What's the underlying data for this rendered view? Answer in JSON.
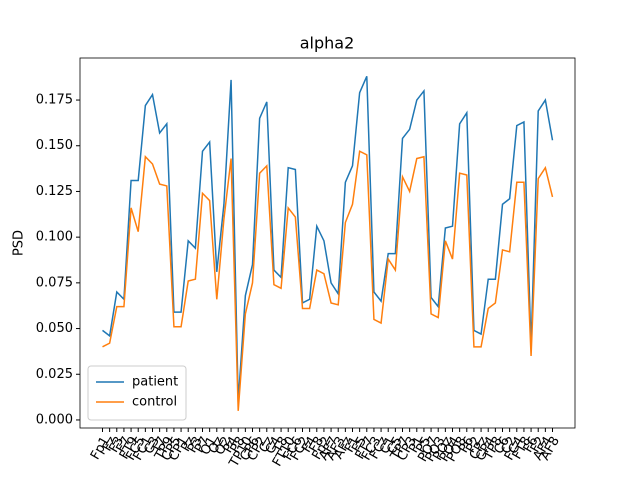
{
  "chart_data": {
    "type": "line",
    "title": "alpha2",
    "y_label": "PSD",
    "categories": [
      "Fp1",
      "Fz",
      "F3",
      "F7",
      "FT9",
      "FC5",
      "FC1",
      "C3",
      "T7",
      "TP9",
      "CP5",
      "CP1",
      "Pz",
      "P3",
      "P7",
      "O1",
      "Oz",
      "O2",
      "P4",
      "P8",
      "TP10",
      "CP6",
      "CP2",
      "Cz",
      "C4",
      "T8",
      "FT10",
      "FC6",
      "FC2",
      "F4",
      "F8",
      "Fp2",
      "AF7",
      "AF3",
      "AFz",
      "F1",
      "F5",
      "FT7",
      "FC3",
      "FCz",
      "C1",
      "C5",
      "TP7",
      "CP3",
      "P1",
      "P5",
      "PO7",
      "PO3",
      "POz",
      "PO4",
      "PO8",
      "P6",
      "P2",
      "CPz",
      "CP4",
      "TP8",
      "C6",
      "C2",
      "FC4",
      "FT8",
      "F6",
      "F2",
      "AF4",
      "AF8"
    ],
    "series": [
      {
        "name": "patient",
        "color": "#1f77b4",
        "values": [
          0.049,
          0.046,
          0.07,
          0.066,
          0.131,
          0.131,
          0.172,
          0.178,
          0.157,
          0.162,
          0.059,
          0.059,
          0.098,
          0.094,
          0.147,
          0.152,
          0.081,
          0.118,
          0.186,
          0.01,
          0.068,
          0.085,
          0.165,
          0.174,
          0.082,
          0.078,
          0.138,
          0.137,
          0.064,
          0.066,
          0.106,
          0.098,
          0.075,
          0.069,
          0.13,
          0.139,
          0.179,
          0.188,
          0.07,
          0.065,
          0.091,
          0.091,
          0.154,
          0.159,
          0.175,
          0.18,
          0.067,
          0.062,
          0.105,
          0.106,
          0.162,
          0.168,
          0.049,
          0.047,
          0.077,
          0.077,
          0.118,
          0.121,
          0.161,
          0.163,
          0.04,
          0.169,
          0.175,
          0.153
        ]
      },
      {
        "name": "control",
        "color": "#ff7f0e",
        "values": [
          0.04,
          0.042,
          0.062,
          0.062,
          0.116,
          0.103,
          0.144,
          0.14,
          0.129,
          0.128,
          0.051,
          0.051,
          0.076,
          0.077,
          0.124,
          0.12,
          0.066,
          0.11,
          0.143,
          0.005,
          0.058,
          0.075,
          0.135,
          0.139,
          0.074,
          0.072,
          0.116,
          0.111,
          0.061,
          0.061,
          0.082,
          0.08,
          0.064,
          0.063,
          0.108,
          0.118,
          0.147,
          0.145,
          0.055,
          0.053,
          0.088,
          0.082,
          0.133,
          0.125,
          0.143,
          0.144,
          0.058,
          0.056,
          0.098,
          0.088,
          0.135,
          0.134,
          0.04,
          0.04,
          0.061,
          0.064,
          0.093,
          0.092,
          0.13,
          0.13,
          0.035,
          0.132,
          0.138,
          0.122
        ]
      }
    ],
    "ylim": [
      -0.0044,
      0.198
    ],
    "yticks": [
      {
        "value": 0,
        "label": "0.000"
      },
      {
        "value": 0.025,
        "label": "0.025"
      },
      {
        "value": 0.05,
        "label": "0.050"
      },
      {
        "value": 0.075,
        "label": "0.075"
      },
      {
        "value": 0.1,
        "label": "0.100"
      },
      {
        "value": 0.125,
        "label": "0.125"
      },
      {
        "value": 0.15,
        "label": "0.150"
      },
      {
        "value": 0.175,
        "label": "0.175"
      }
    ],
    "legend": "lower left",
    "grid": false
  }
}
